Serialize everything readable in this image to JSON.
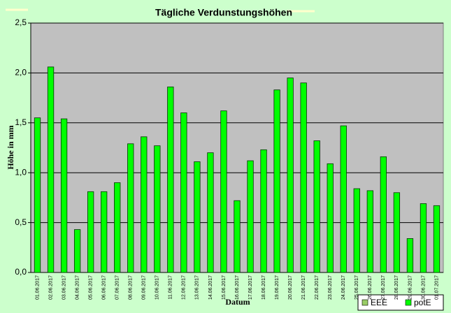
{
  "chart_data": {
    "type": "bar",
    "title": "Tägliche Verdunstungshöhen",
    "y_label": "Höhe in mm",
    "x_label": "Datum",
    "categories": [
      "01.06.2017",
      "02.06.2017",
      "03.06.2017",
      "04.06.2017",
      "05.06.2017",
      "06.06.2017",
      "07.06.2017",
      "08.06.2017",
      "09.06.2017",
      "10.06.2017",
      "11.06.2017",
      "12.06.2017",
      "13.06.2017",
      "14.06.2017",
      "15.06.2017",
      "16.06.2017",
      "17.06.2017",
      "18.06.2017",
      "19.06.2017",
      "20.06.2017",
      "21.06.2017",
      "22.06.2017",
      "23.06.2017",
      "24.06.2017",
      "25.06.2017",
      "26.06.2017",
      "27.06.2017",
      "28.06.2017",
      "29.06.2017",
      "30.06.2017",
      "01.07.2017"
    ],
    "series": [
      {
        "name": "EEE",
        "color": "#99cc66",
        "values": [
          null,
          null,
          null,
          null,
          null,
          null,
          null,
          null,
          null,
          null,
          null,
          null,
          null,
          null,
          null,
          null,
          null,
          null,
          null,
          null,
          null,
          null,
          null,
          null,
          null,
          null,
          null,
          null,
          null,
          null,
          null
        ]
      },
      {
        "name": "potE",
        "color": "#00ff00",
        "values": [
          1.55,
          2.06,
          1.54,
          0.43,
          0.81,
          0.81,
          0.9,
          1.29,
          1.36,
          1.27,
          1.86,
          1.6,
          1.11,
          1.2,
          1.62,
          0.72,
          1.12,
          1.23,
          1.83,
          1.95,
          1.9,
          1.32,
          1.09,
          1.47,
          0.84,
          0.82,
          1.16,
          0.8,
          0.34,
          0.69,
          0.67
        ]
      }
    ],
    "ylim": [
      0,
      2.5
    ],
    "yticks": [
      {
        "value": 0,
        "label": "0,0"
      },
      {
        "value": 0.5,
        "label": "0,5"
      },
      {
        "value": 1,
        "label": "1,0"
      },
      {
        "value": 1.5,
        "label": "1,5"
      },
      {
        "value": 2,
        "label": "2,0"
      },
      {
        "value": 2.5,
        "label": "2,5"
      }
    ],
    "grid": true,
    "legend": "bottom-right"
  }
}
